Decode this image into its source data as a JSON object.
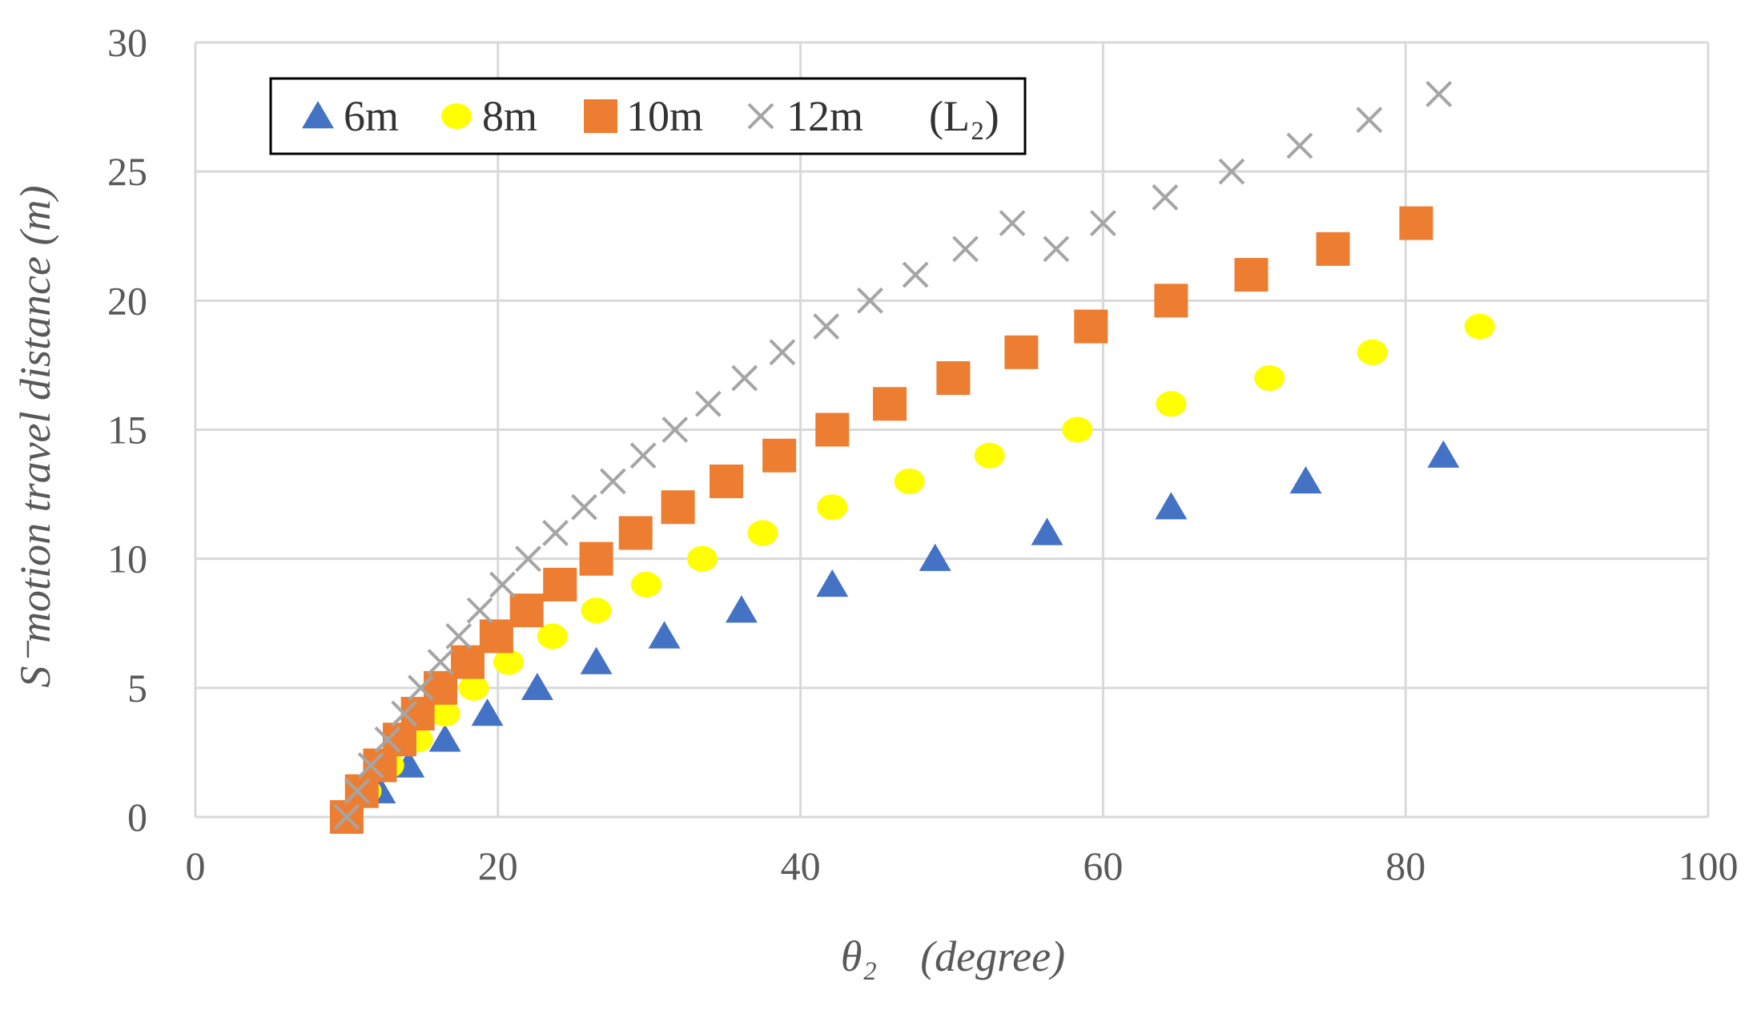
{
  "chart_data": {
    "type": "scatter",
    "title": "",
    "xlabel": "θ₂　(degree)",
    "ylabel": "S⁻motion travel distance (m)",
    "xlim": [
      0,
      100
    ],
    "ylim": [
      0,
      30
    ],
    "xticks": [
      0,
      20,
      40,
      60,
      80,
      100
    ],
    "yticks": [
      0,
      5,
      10,
      15,
      20,
      25,
      30
    ],
    "grid": true,
    "legend_position": "top-left",
    "legend_suffix": "(L₂)",
    "series": [
      {
        "name": "6m",
        "marker": "triangle",
        "color": "#4472C4",
        "x": [
          10.0,
          12.2,
          14.1,
          16.5,
          19.3,
          22.6,
          26.5,
          31.0,
          36.1,
          42.1,
          48.9,
          56.3,
          64.5,
          73.4,
          82.5
        ],
        "y": [
          0,
          1,
          2,
          3,
          4,
          5,
          6,
          7,
          8,
          9,
          10,
          11,
          12,
          13,
          14
        ]
      },
      {
        "name": "8m",
        "marker": "circle",
        "color": "#FFFF00",
        "x": [
          10.0,
          11.3,
          12.8,
          14.7,
          16.5,
          18.4,
          20.7,
          23.6,
          26.5,
          29.8,
          33.5,
          37.5,
          42.1,
          47.2,
          52.5,
          58.3,
          64.5,
          71.0,
          77.8,
          84.9
        ],
        "y": [
          0,
          1,
          2,
          3,
          4,
          5,
          6,
          7,
          8,
          9,
          10,
          11,
          12,
          13,
          14,
          15,
          16,
          17,
          18,
          19
        ]
      },
      {
        "name": "10m",
        "marker": "square",
        "color": "#ED7D31",
        "x": [
          10.0,
          11.0,
          12.2,
          13.5,
          14.7,
          16.2,
          18.0,
          19.9,
          21.9,
          24.1,
          26.5,
          29.1,
          31.9,
          35.1,
          38.6,
          42.1,
          45.9,
          50.1,
          54.6,
          59.2,
          64.5,
          69.8,
          75.2,
          80.7
        ],
        "y": [
          0,
          1,
          2,
          3,
          4,
          5,
          6,
          7,
          8,
          9,
          10,
          11,
          12,
          13,
          14,
          15,
          16,
          17,
          18,
          19,
          20,
          21,
          22,
          23
        ]
      },
      {
        "name": "12m",
        "marker": "x",
        "color": "#A5A5A5",
        "x": [
          10.0,
          10.7,
          11.6,
          12.7,
          13.8,
          14.9,
          16.2,
          17.4,
          18.8,
          20.3,
          22.0,
          23.8,
          25.7,
          27.6,
          29.6,
          31.7,
          33.9,
          36.3,
          38.8,
          41.7,
          44.6,
          47.6,
          50.9,
          54.0,
          56.9,
          60.0,
          64.1,
          68.5,
          73.0,
          77.6,
          82.2
        ],
        "y": [
          0,
          1,
          2,
          3,
          4,
          5,
          6,
          7,
          8,
          9,
          10,
          11,
          12,
          13,
          14,
          15,
          16,
          17,
          18,
          19,
          20,
          21,
          22,
          23,
          22,
          23,
          24,
          25,
          26,
          27,
          28
        ]
      }
    ]
  }
}
